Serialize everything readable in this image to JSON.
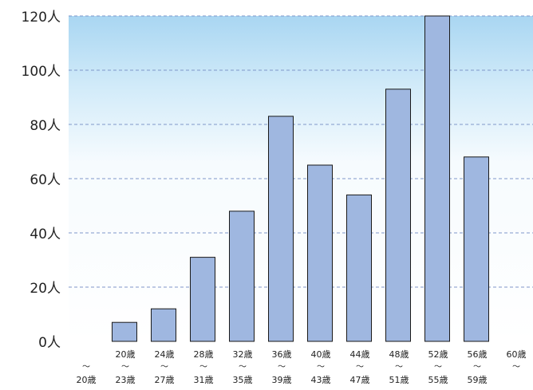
{
  "chart_data": {
    "type": "bar",
    "title": "",
    "xlabel": "",
    "ylabel": "",
    "ylim": [
      0,
      120
    ],
    "y_tick_labels": [
      "0人",
      "20人",
      "40人",
      "60人",
      "80人",
      "100人",
      "120人"
    ],
    "y_tick_values": [
      0,
      20,
      40,
      60,
      80,
      100,
      120
    ],
    "grid": true,
    "categories": [
      {
        "top": "",
        "mid": "〜",
        "bottom": "20歳"
      },
      {
        "top": "20歳",
        "mid": "〜",
        "bottom": "23歳"
      },
      {
        "top": "24歳",
        "mid": "〜",
        "bottom": "27歳"
      },
      {
        "top": "28歳",
        "mid": "〜",
        "bottom": "31歳"
      },
      {
        "top": "32歳",
        "mid": "〜",
        "bottom": "35歳"
      },
      {
        "top": "36歳",
        "mid": "〜",
        "bottom": "39歳"
      },
      {
        "top": "40歳",
        "mid": "〜",
        "bottom": "43歳"
      },
      {
        "top": "44歳",
        "mid": "〜",
        "bottom": "47歳"
      },
      {
        "top": "48歳",
        "mid": "〜",
        "bottom": "51歳"
      },
      {
        "top": "52歳",
        "mid": "〜",
        "bottom": "55歳"
      },
      {
        "top": "56歳",
        "mid": "〜",
        "bottom": "59歳"
      },
      {
        "top": "60歳",
        "mid": "〜",
        "bottom": ""
      }
    ],
    "values": [
      0,
      7,
      12,
      31,
      48,
      83,
      65,
      54,
      93,
      120,
      68,
      0
    ],
    "colors": {
      "bar_fill": "#9fb7e0",
      "bar_stroke": "#1a1a1a",
      "grid": "#7f97c9",
      "background_top": "#a9d6f2",
      "background_bottom": "#f6fbfe",
      "text": "#222222"
    }
  }
}
